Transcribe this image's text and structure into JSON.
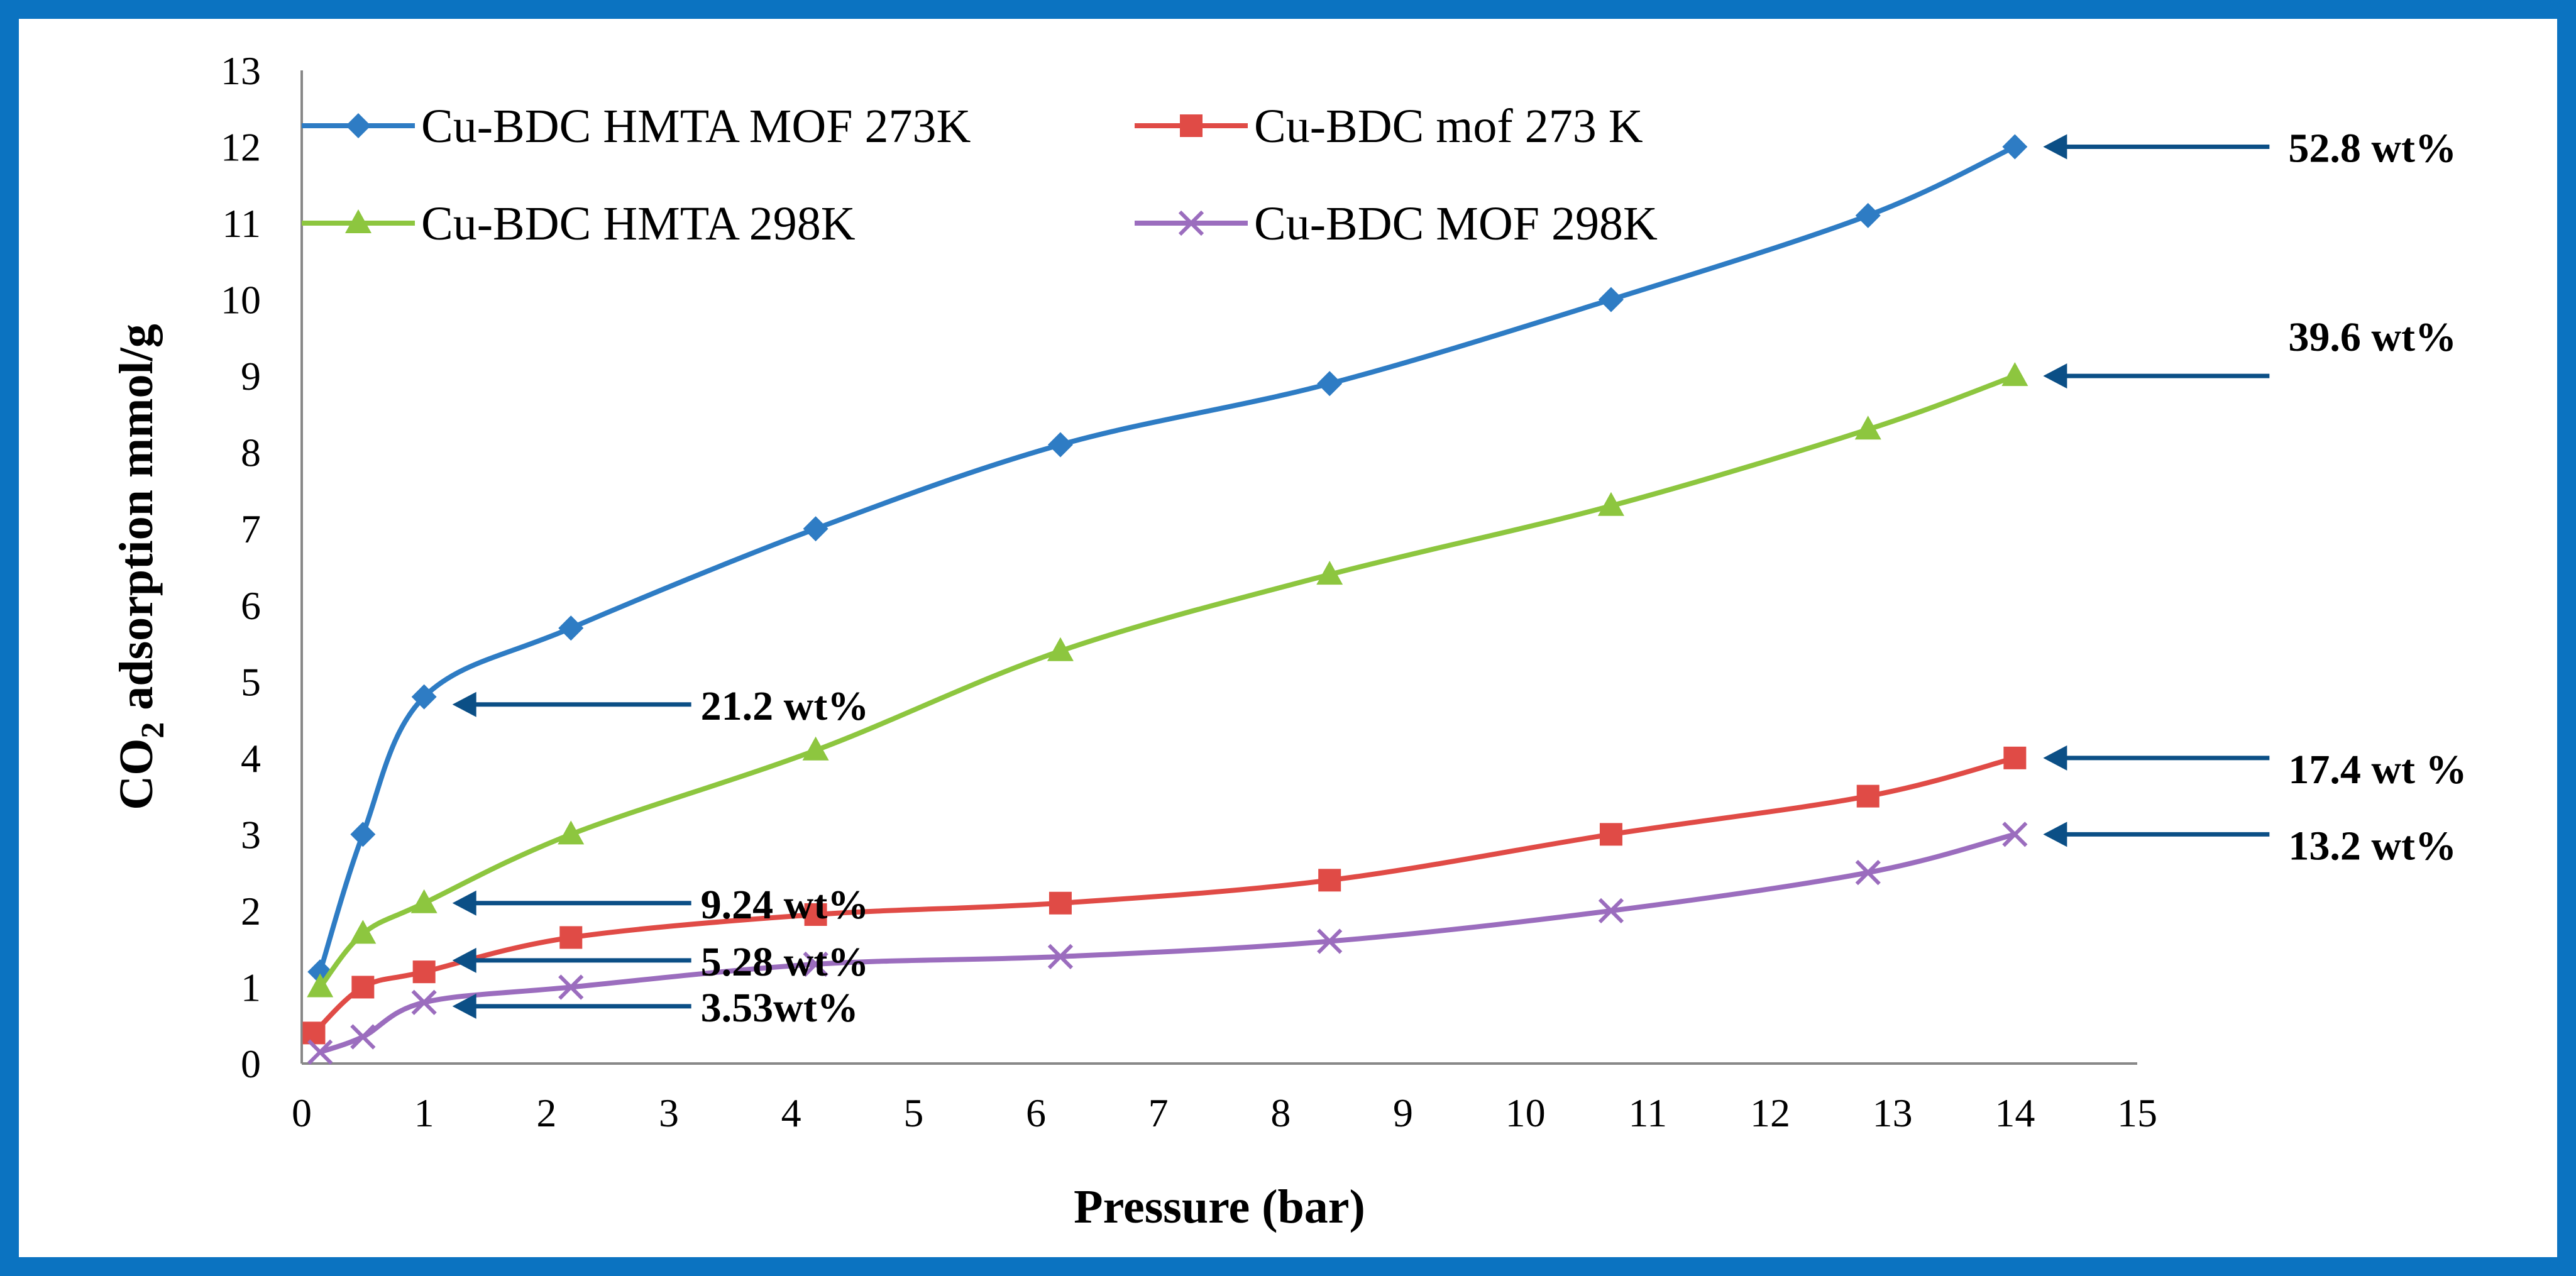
{
  "chart_data": {
    "type": "line",
    "title": "",
    "xlabel": "Pressure (bar)",
    "ylabel": "CO2 adsorption mmol/g",
    "ylabel_main": "CO",
    "ylabel_sub": "2",
    "ylabel_rest": " adsorption mmol/g",
    "xlim": [
      0,
      15
    ],
    "ylim": [
      0,
      13
    ],
    "xticks": [
      0,
      1,
      2,
      3,
      4,
      5,
      6,
      7,
      8,
      9,
      10,
      11,
      12,
      13,
      14,
      15
    ],
    "yticks": [
      0,
      1,
      2,
      3,
      4,
      5,
      6,
      7,
      8,
      9,
      10,
      11,
      12,
      13
    ],
    "grid": false,
    "legend_position": "top-left",
    "series": [
      {
        "name": "Cu-BDC HMTA MOF 273K",
        "color": "#2e7cc4",
        "marker": "diamond",
        "x": [
          0.15,
          0.5,
          1.0,
          2.2,
          4.2,
          6.2,
          8.4,
          10.7,
          12.8,
          14.0
        ],
        "y": [
          1.2,
          3.0,
          4.8,
          5.7,
          7.0,
          8.1,
          8.9,
          10.0,
          11.1,
          12.0
        ]
      },
      {
        "name": "Cu-BDC mof 273 K",
        "color": "#e04b46",
        "marker": "square",
        "x": [
          0.1,
          0.5,
          1.0,
          2.2,
          4.2,
          6.2,
          8.4,
          10.7,
          12.8,
          14.0
        ],
        "y": [
          0.4,
          1.0,
          1.2,
          1.65,
          1.95,
          2.1,
          2.4,
          3.0,
          3.5,
          4.0
        ]
      },
      {
        "name": "Cu-BDC HMTA 298K",
        "color": "#8dc63f",
        "marker": "triangle",
        "x": [
          0.15,
          0.5,
          1.0,
          2.2,
          4.2,
          6.2,
          8.4,
          10.7,
          12.8,
          14.0
        ],
        "y": [
          1.0,
          1.7,
          2.1,
          3.0,
          4.1,
          5.4,
          6.4,
          7.3,
          8.3,
          9.0
        ]
      },
      {
        "name": "Cu-BDC MOF 298K",
        "color": "#9b6dbe",
        "marker": "x",
        "x": [
          0.15,
          0.5,
          1.0,
          2.2,
          4.2,
          6.2,
          8.4,
          10.7,
          12.8,
          14.0
        ],
        "y": [
          0.15,
          0.35,
          0.8,
          1.0,
          1.3,
          1.4,
          1.6,
          2.0,
          2.5,
          3.0
        ]
      }
    ],
    "annotations": [
      {
        "text": "52.8 wt%",
        "point": [
          14.0,
          12.0
        ],
        "side": "right"
      },
      {
        "text": "39.6 wt%",
        "point": [
          14.0,
          9.0
        ],
        "side": "right"
      },
      {
        "text": "17.4 wt %",
        "point": [
          14.0,
          4.0
        ],
        "side": "right"
      },
      {
        "text": "13.2 wt%",
        "point": [
          14.0,
          3.0
        ],
        "side": "right"
      },
      {
        "text": "21.2 wt%",
        "point": [
          1.0,
          4.7
        ],
        "side": "left"
      },
      {
        "text": "9.24 wt%",
        "point": [
          1.0,
          2.1
        ],
        "side": "left"
      },
      {
        "text": "5.28 wt%",
        "point": [
          1.0,
          1.35
        ],
        "side": "left"
      },
      {
        "text": "3.53wt%",
        "point": [
          1.0,
          0.75
        ],
        "side": "left"
      }
    ],
    "annotation_arrow_color": "#0b4f86"
  }
}
